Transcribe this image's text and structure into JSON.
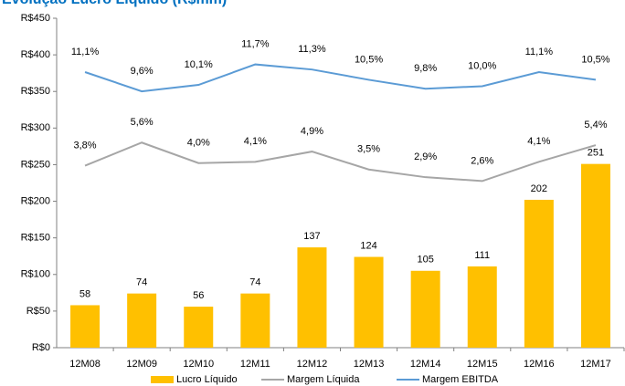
{
  "chart_data": {
    "type": "bar",
    "title": "Evolução Lucro Líquido (R$mm)",
    "categories": [
      "12M08",
      "12M09",
      "12M10",
      "12M11",
      "12M12",
      "12M13",
      "12M14",
      "12M15",
      "12M16",
      "12M17"
    ],
    "series": [
      {
        "name": "Lucro Líquido",
        "type": "bar",
        "color": "#ffc000",
        "values": [
          58,
          74,
          56,
          74,
          137,
          124,
          105,
          111,
          202,
          251
        ]
      },
      {
        "name": "Margem Líquida",
        "type": "line",
        "axis": "y2",
        "color": "#a6a6a6",
        "values": [
          3.8,
          5.6,
          4.0,
          4.1,
          4.9,
          3.5,
          2.9,
          2.6,
          4.1,
          5.4
        ],
        "value_labels": [
          "3,8%",
          "5,6%",
          "4,0%",
          "4,1%",
          "4,9%",
          "3,5%",
          "2,9%",
          "2,6%",
          "4,1%",
          "5,4%"
        ]
      },
      {
        "name": "Margem EBITDA",
        "type": "line",
        "axis": "y2",
        "color": "#5b9bd5",
        "values": [
          11.1,
          9.6,
          10.1,
          11.7,
          11.3,
          10.5,
          9.8,
          10.0,
          11.1,
          10.5
        ],
        "value_labels": [
          "11,1%",
          "9,6%",
          "10,1%",
          "11,7%",
          "11,3%",
          "10,5%",
          "9,8%",
          "10,0%",
          "11,1%",
          "10,5%"
        ]
      }
    ],
    "ylim": [
      0,
      450
    ],
    "yticks": [
      {
        "value": 0,
        "label": "R$0"
      },
      {
        "value": 50,
        "label": "R$50"
      },
      {
        "value": 100,
        "label": "R$100"
      },
      {
        "value": 150,
        "label": "R$150"
      },
      {
        "value": 200,
        "label": "R$200"
      },
      {
        "value": 250,
        "label": "R$250"
      },
      {
        "value": 300,
        "label": "R$300"
      },
      {
        "value": 350,
        "label": "R$350"
      },
      {
        "value": 400,
        "label": "R$400"
      },
      {
        "value": 450,
        "label": "R$450"
      }
    ],
    "y2lim": [
      -10.4,
      15.3
    ],
    "legend": "bottom"
  }
}
